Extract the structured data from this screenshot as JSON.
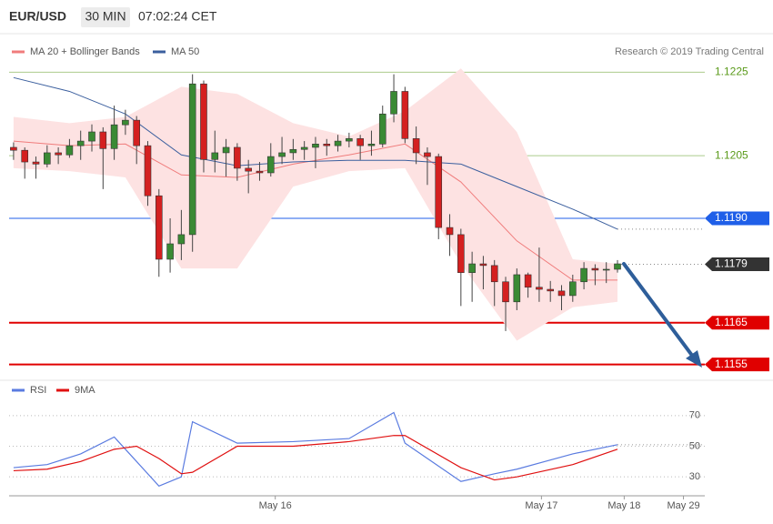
{
  "header": {
    "symbol": "EUR/USD",
    "interval": "30 MIN",
    "time": "07:02:24 CET"
  },
  "chart_data": [
    {
      "type": "candlestick",
      "credit": "Research © 2019 Trading Central",
      "up_color": "#3a8a34",
      "down_color": "#d42020",
      "xlim": [
        -0.4,
        61.4
      ],
      "ylim": [
        1.1151,
        1.1229
      ],
      "candles": [
        [
          1.1207,
          1.12082,
          1.1204,
          1.12063
        ],
        [
          1.12063,
          1.1207,
          1.11995,
          1.12035
        ],
        [
          1.12035,
          1.12048,
          1.11995,
          1.1203
        ],
        [
          1.1203,
          1.12075,
          1.12022,
          1.12057
        ],
        [
          1.12057,
          1.1207,
          1.1203,
          1.12052
        ],
        [
          1.12052,
          1.1209,
          1.12045,
          1.12074
        ],
        [
          1.12074,
          1.1211,
          1.1204,
          1.12085
        ],
        [
          1.12085,
          1.12125,
          1.1206,
          1.12107
        ],
        [
          1.12107,
          1.12118,
          1.1197,
          1.12067
        ],
        [
          1.12067,
          1.1217,
          1.1204,
          1.12124
        ],
        [
          1.12124,
          1.1216,
          1.121,
          1.12135
        ],
        [
          1.12135,
          1.12145,
          1.1203,
          1.12074
        ],
        [
          1.12074,
          1.12085,
          1.1193,
          1.11954
        ],
        [
          1.11954,
          1.1197,
          1.1176,
          1.11802
        ],
        [
          1.11802,
          1.119,
          1.1177,
          1.11839
        ],
        [
          1.11839,
          1.1192,
          1.118,
          1.11861
        ],
        [
          1.11861,
          1.12245,
          1.1182,
          1.12222
        ],
        [
          1.12222,
          1.1223,
          1.1201,
          1.12041
        ],
        [
          1.12041,
          1.1211,
          1.1201,
          1.12057
        ],
        [
          1.12057,
          1.1209,
          1.12,
          1.1207
        ],
        [
          1.1207,
          1.1208,
          1.1199,
          1.1202
        ],
        [
          1.1202,
          1.1204,
          1.1196,
          1.12013
        ],
        [
          1.12013,
          1.12035,
          1.1199,
          1.12009
        ],
        [
          1.12009,
          1.1208,
          1.12,
          1.12048
        ],
        [
          1.12048,
          1.12095,
          1.1203,
          1.12057
        ],
        [
          1.12057,
          1.1209,
          1.1204,
          1.12065
        ],
        [
          1.12065,
          1.12085,
          1.1204,
          1.1207
        ],
        [
          1.1207,
          1.12095,
          1.1202,
          1.12078
        ],
        [
          1.12078,
          1.1209,
          1.1205,
          1.12074
        ],
        [
          1.12074,
          1.121,
          1.1206,
          1.12085
        ],
        [
          1.12085,
          1.12105,
          1.1207,
          1.12091
        ],
        [
          1.12091,
          1.121,
          1.1204,
          1.12074
        ],
        [
          1.12074,
          1.1211,
          1.1205,
          1.12078
        ],
        [
          1.12078,
          1.1217,
          1.1207,
          1.1215
        ],
        [
          1.1215,
          1.12245,
          1.1213,
          1.12204
        ],
        [
          1.12204,
          1.12215,
          1.1208,
          1.12091
        ],
        [
          1.12091,
          1.1212,
          1.1203,
          1.12057
        ],
        [
          1.12057,
          1.1207,
          1.1198,
          1.12048
        ],
        [
          1.12048,
          1.12055,
          1.1185,
          1.11878
        ],
        [
          1.11878,
          1.1191,
          1.1181,
          1.11861
        ],
        [
          1.11861,
          1.11875,
          1.1169,
          1.1177
        ],
        [
          1.1177,
          1.1182,
          1.117,
          1.11791
        ],
        [
          1.11791,
          1.1181,
          1.1173,
          1.11787
        ],
        [
          1.11787,
          1.118,
          1.1169,
          1.11748
        ],
        [
          1.11748,
          1.1176,
          1.1163,
          1.117
        ],
        [
          1.117,
          1.1178,
          1.1168,
          1.11765
        ],
        [
          1.11765,
          1.1177,
          1.1171,
          1.11735
        ],
        [
          1.11735,
          1.1183,
          1.117,
          1.1173
        ],
        [
          1.1173,
          1.1175,
          1.117,
          1.11726
        ],
        [
          1.11726,
          1.1174,
          1.1168,
          1.11715
        ],
        [
          1.11715,
          1.11765,
          1.117,
          1.11748
        ],
        [
          1.11748,
          1.11795,
          1.1173,
          1.1178
        ],
        [
          1.1178,
          1.1179,
          1.1174,
          1.11776
        ],
        [
          1.11776,
          1.11795,
          1.11745,
          1.11778
        ],
        [
          1.11778,
          1.118,
          1.1177,
          1.11791
        ]
      ],
      "series": [
        {
          "name": "MA 20 + Bollinger Bands",
          "color": "#f07c7c",
          "band_color": "#fde2e2",
          "x": [
            0,
            5,
            10,
            15,
            20,
            25,
            30,
            35,
            40,
            45,
            50,
            54
          ],
          "values": [
            1.12085,
            1.12074,
            1.12078,
            1.12004,
            1.11998,
            1.1203,
            1.12052,
            1.12078,
            1.11987,
            1.11846,
            1.11752,
            1.11752
          ],
          "upper": [
            1.12143,
            1.12128,
            1.12143,
            1.12215,
            1.12198,
            1.12128,
            1.12096,
            1.12157,
            1.12259,
            1.12107,
            1.11802,
            1.11791
          ],
          "lower": [
            1.1202,
            1.12013,
            1.11998,
            1.1178,
            1.1178,
            1.11976,
            1.12013,
            1.1202,
            1.11791,
            1.11607,
            1.11687,
            1.117
          ]
        },
        {
          "name": "MA 50",
          "color": "#3b5f9e",
          "x": [
            0,
            5,
            10,
            15,
            20,
            25,
            30,
            35,
            40,
            45,
            50,
            54
          ],
          "values": [
            1.12237,
            1.12204,
            1.1215,
            1.12052,
            1.12026,
            1.12035,
            1.12039,
            1.12039,
            1.1203,
            1.11976,
            1.11922,
            1.11874
          ]
        }
      ],
      "levels": [
        {
          "value": 1.1225,
          "color": "#5a9a1a",
          "kind": "line",
          "style": "solid"
        },
        {
          "value": 1.1205,
          "color": "#5a9a1a",
          "kind": "line",
          "style": "solid"
        },
        {
          "value": 1.119,
          "label": "1.1190",
          "color": "#1f5fe8",
          "kind": "tag",
          "style": "solid"
        },
        {
          "value": 1.1179,
          "color": "#333333",
          "kind": "tag",
          "style": "dotted"
        },
        {
          "value": 1.1165,
          "color": "#e00000",
          "kind": "tag",
          "style": "solid"
        },
        {
          "value": 1.1155,
          "color": "#e00000",
          "kind": "tag",
          "style": "solid"
        }
      ]
    },
    {
      "type": "line",
      "xlim": [
        -0.4,
        61.4
      ],
      "ylim": [
        20,
        80
      ],
      "yticks": [
        70,
        50,
        30
      ],
      "grid": true,
      "xticks": [
        {
          "value": 23.4,
          "label": "May 16"
        },
        {
          "value": 47.2,
          "label": "May 17"
        },
        {
          "value": 54.6,
          "label": "May 18"
        },
        {
          "value": 59.9,
          "label": "May 29"
        }
      ],
      "series": [
        {
          "name": "RSI",
          "color": "#5a7be0",
          "x": [
            0,
            3,
            6,
            9,
            11,
            13,
            15,
            16,
            20,
            25,
            30,
            34,
            35,
            40,
            43,
            45,
            50,
            54
          ],
          "values": [
            36,
            38,
            45,
            56,
            40,
            24,
            30,
            66,
            52,
            53,
            55,
            72,
            52,
            27,
            32,
            35,
            45,
            51
          ]
        },
        {
          "name": "9MA",
          "color": "#e01010",
          "x": [
            0,
            3,
            6,
            9,
            11,
            13,
            15,
            16,
            20,
            25,
            30,
            34,
            35,
            40,
            43,
            45,
            50,
            54
          ],
          "values": [
            34,
            35,
            40,
            48,
            50,
            42,
            32,
            33,
            50,
            50,
            53,
            57,
            57,
            36,
            28,
            30,
            38,
            48
          ]
        }
      ]
    }
  ]
}
